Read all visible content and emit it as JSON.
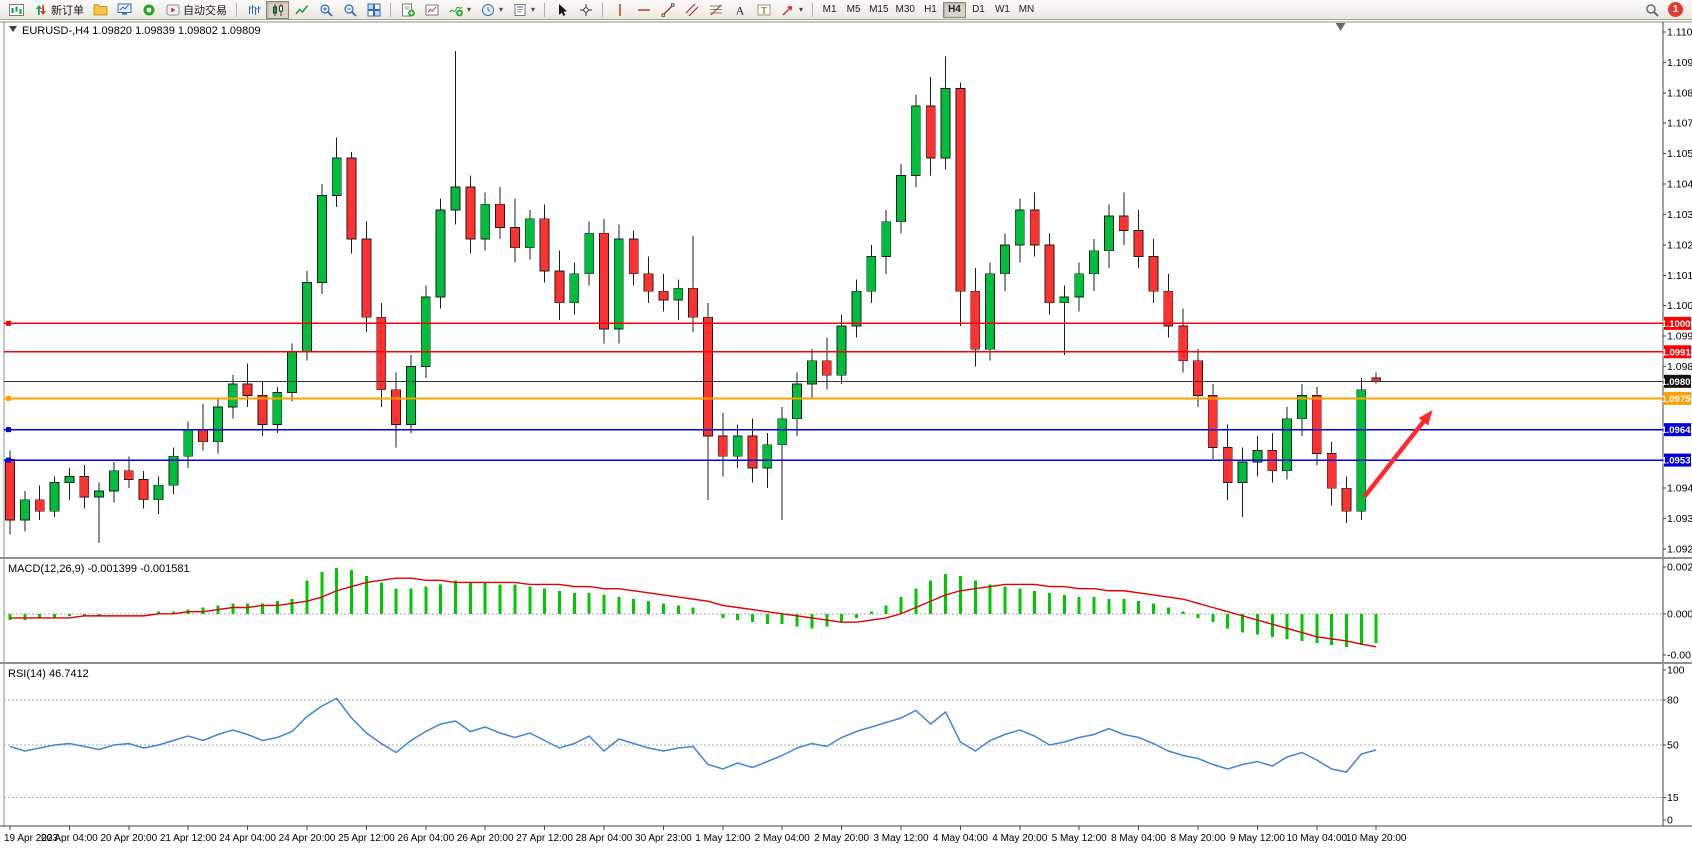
{
  "toolbar": {
    "new_order_label": "新订单",
    "autotrading_label": "自动交易",
    "timeframes": [
      "M1",
      "M5",
      "M15",
      "M30",
      "H1",
      "H4",
      "D1",
      "W1",
      "MN"
    ],
    "active_timeframe": "H4",
    "notification_count": "1",
    "icons": [
      "new-chart-icon",
      "new-order-icon",
      "profiles-icon",
      "market-watch-icon",
      "data-window-icon",
      "autotrading-icon",
      "bar-chart-icon",
      "candlestick-icon",
      "line-chart-icon",
      "zoom-in-icon",
      "zoom-out-icon",
      "tile-windows-icon",
      "order-window-icon",
      "chart-window-icon",
      "indicators-icon",
      "clock-icon",
      "template-icon",
      "cursor-icon",
      "crosshair-icon",
      "vertical-line-icon",
      "horizontal-line-icon",
      "trendline-icon",
      "channel-icon",
      "fibonacci-icon",
      "text-icon",
      "text-label-icon",
      "shapes-icon",
      "search-icon"
    ]
  },
  "chart_data": {
    "type": "candlestick",
    "title": "EURUSD-,H4",
    "ohlc": "1.09820 1.09839 1.09802 1.09809",
    "colors": {
      "up": "#00BE3C",
      "down": "#FF3232",
      "wick": "#1d1d1d",
      "macd_hist": "#00C800",
      "macd_signal": "#E00000",
      "rsi": "#3E86D8",
      "arrow": "#FF2A2A",
      "axis_text": "#000000",
      "level": "#A8A8A8"
    },
    "y_axis": {
      "max": 1.11015,
      "min": 1.0923,
      "step": 0.00105,
      "visible_ticks": [
        "1.11015",
        "1.10910",
        "1.10805",
        "1.10700",
        "1.10595",
        "1.10490",
        "1.10385",
        "1.10280",
        "1.10175",
        "1.10070",
        "1.09965",
        "1.09860",
        "1.09440",
        "1.09335",
        "1.09230"
      ]
    },
    "x_labels": [
      "19 Apr 2023",
      "20 Apr 04:00",
      "20 Apr 20:00",
      "21 Apr 12:00",
      "24 Apr 04:00",
      "24 Apr 20:00",
      "25 Apr 12:00",
      "26 Apr 04:00",
      "26 Apr 20:00",
      "27 Apr 12:00",
      "28 Apr 04:00",
      "30 Apr 23:00",
      "1 May 12:00",
      "2 May 04:00",
      "2 May 20:00",
      "3 May 12:00",
      "4 May 04:00",
      "4 May 20:00",
      "5 May 12:00",
      "8 May 04:00",
      "8 May 20:00",
      "9 May 12:00",
      "10 May 04:00",
      "10 May 20:00"
    ],
    "candles_per_label": 4,
    "candles": [
      [
        1.0954,
        1.0957,
        1.0928,
        1.0933
      ],
      [
        1.0933,
        1.0943,
        1.0929,
        1.094
      ],
      [
        1.094,
        1.0945,
        1.0933,
        1.0936
      ],
      [
        1.0936,
        1.0948,
        1.0934,
        1.0946
      ],
      [
        1.0946,
        1.0951,
        1.094,
        1.0948
      ],
      [
        1.0948,
        1.0952,
        1.0937,
        1.0941
      ],
      [
        1.0941,
        1.0946,
        1.0925,
        1.0943
      ],
      [
        1.0943,
        1.0953,
        1.0939,
        1.095
      ],
      [
        1.095,
        1.0955,
        1.0944,
        1.0947
      ],
      [
        1.0947,
        1.095,
        1.0937,
        1.094
      ],
      [
        1.094,
        1.0948,
        1.0935,
        1.0945
      ],
      [
        1.0945,
        1.0958,
        1.0942,
        1.0955
      ],
      [
        1.0955,
        1.0967,
        1.0951,
        1.0964
      ],
      [
        1.0964,
        1.0973,
        1.0957,
        1.096
      ],
      [
        1.096,
        1.0975,
        1.0956,
        1.0972
      ],
      [
        1.0972,
        1.0983,
        1.0968,
        1.098
      ],
      [
        1.098,
        1.0987,
        1.0972,
        1.0976
      ],
      [
        1.0976,
        1.0981,
        1.0962,
        1.0966
      ],
      [
        1.0966,
        1.0979,
        1.0963,
        1.0977
      ],
      [
        1.0977,
        1.0994,
        1.0974,
        1.0991
      ],
      [
        1.0991,
        1.1019,
        1.0988,
        1.1015
      ],
      [
        1.1015,
        1.1049,
        1.1011,
        1.1045
      ],
      [
        1.1045,
        1.1065,
        1.1041,
        1.1058
      ],
      [
        1.1058,
        1.106,
        1.1025,
        1.103
      ],
      [
        1.103,
        1.1036,
        1.0998,
        1.1003
      ],
      [
        1.1003,
        1.1008,
        1.0972,
        1.0978
      ],
      [
        1.0978,
        1.0984,
        1.0958,
        1.0966
      ],
      [
        1.0966,
        1.099,
        1.0963,
        1.0986
      ],
      [
        1.0986,
        1.1014,
        1.0982,
        1.101
      ],
      [
        1.101,
        1.1044,
        1.1006,
        1.104
      ],
      [
        1.104,
        1.1095,
        1.1035,
        1.1048
      ],
      [
        1.1048,
        1.1052,
        1.1025,
        1.103
      ],
      [
        1.103,
        1.1046,
        1.1026,
        1.1042
      ],
      [
        1.1042,
        1.1048,
        1.103,
        1.1034
      ],
      [
        1.1034,
        1.1044,
        1.1022,
        1.1027
      ],
      [
        1.1027,
        1.104,
        1.1023,
        1.1037
      ],
      [
        1.1037,
        1.1042,
        1.1015,
        1.1019
      ],
      [
        1.1019,
        1.1026,
        1.1002,
        1.1008
      ],
      [
        1.1008,
        1.1022,
        1.1004,
        1.1018
      ],
      [
        1.1018,
        1.1036,
        1.1014,
        1.1032
      ],
      [
        1.1032,
        1.1037,
        1.0994,
        1.0999
      ],
      [
        1.0999,
        1.1035,
        1.0994,
        1.103
      ],
      [
        1.103,
        1.1033,
        1.1014,
        1.1018
      ],
      [
        1.1018,
        1.1024,
        1.1008,
        1.1012
      ],
      [
        1.1012,
        1.1018,
        1.1005,
        1.1009
      ],
      [
        1.1009,
        1.1016,
        1.1002,
        1.1013
      ],
      [
        1.1013,
        1.1031,
        1.0998,
        1.1003
      ],
      [
        1.1003,
        1.1008,
        1.094,
        1.0962
      ],
      [
        1.0962,
        1.097,
        1.0948,
        1.0955
      ],
      [
        1.0955,
        1.0966,
        1.0951,
        1.0962
      ],
      [
        1.0962,
        1.0968,
        1.0946,
        1.0951
      ],
      [
        1.0951,
        1.0963,
        1.0944,
        1.0959
      ],
      [
        1.0959,
        1.0972,
        1.0933,
        1.0968
      ],
      [
        1.0968,
        1.0984,
        1.0962,
        1.098
      ],
      [
        1.098,
        1.0992,
        1.0975,
        1.0988
      ],
      [
        1.0988,
        1.0996,
        1.0978,
        1.0983
      ],
      [
        1.0983,
        1.1004,
        1.098,
        1.1
      ],
      [
        1.1,
        1.1016,
        1.0996,
        1.1012
      ],
      [
        1.1012,
        1.1028,
        1.1008,
        1.1024
      ],
      [
        1.1024,
        1.104,
        1.1018,
        1.1036
      ],
      [
        1.1036,
        1.1056,
        1.1032,
        1.1052
      ],
      [
        1.1052,
        1.108,
        1.1048,
        1.1076
      ],
      [
        1.1076,
        1.1086,
        1.1052,
        1.1058
      ],
      [
        1.1058,
        1.1093,
        1.1054,
        1.1082
      ],
      [
        1.1082,
        1.1084,
        1.1,
        1.1012
      ],
      [
        1.1012,
        1.102,
        1.0986,
        1.0992
      ],
      [
        1.0992,
        1.1022,
        1.0988,
        1.1018
      ],
      [
        1.1018,
        1.1032,
        1.1012,
        1.1028
      ],
      [
        1.1028,
        1.1044,
        1.1022,
        1.104
      ],
      [
        1.104,
        1.1046,
        1.1024,
        1.1028
      ],
      [
        1.1028,
        1.1032,
        1.1004,
        1.1008
      ],
      [
        1.1008,
        1.1014,
        1.099,
        1.101
      ],
      [
        1.101,
        1.1022,
        1.1005,
        1.1018
      ],
      [
        1.1018,
        1.103,
        1.1012,
        1.1026
      ],
      [
        1.1026,
        1.1042,
        1.102,
        1.1038
      ],
      [
        1.1038,
        1.1046,
        1.1028,
        1.1033
      ],
      [
        1.1033,
        1.104,
        1.102,
        1.1024
      ],
      [
        1.1024,
        1.103,
        1.1008,
        1.1012
      ],
      [
        1.1012,
        1.1018,
        1.0996,
        1.1
      ],
      [
        1.1,
        1.1006,
        1.0984,
        1.0988
      ],
      [
        1.0988,
        1.0992,
        1.0972,
        1.0976
      ],
      [
        1.0976,
        1.098,
        1.0954,
        1.0958
      ],
      [
        1.0958,
        1.0966,
        1.094,
        1.0946
      ],
      [
        1.0946,
        1.0958,
        1.0934,
        1.0953
      ],
      [
        1.0953,
        1.0962,
        1.0948,
        1.0957
      ],
      [
        1.0957,
        1.0963,
        1.0946,
        1.095
      ],
      [
        1.095,
        1.0972,
        1.0947,
        1.0968
      ],
      [
        1.0968,
        1.098,
        1.0962,
        1.0976
      ],
      [
        1.0976,
        1.0979,
        1.0952,
        1.0956
      ],
      [
        1.0956,
        1.096,
        1.0938,
        1.0944
      ],
      [
        1.0944,
        1.0948,
        1.0932,
        1.0936
      ],
      [
        1.0936,
        1.0982,
        1.0933,
        1.0978
      ],
      [
        1.0982,
        1.09839,
        1.09802,
        1.09809
      ]
    ],
    "hlines": [
      {
        "price": 1.10009,
        "label": "1.10009",
        "color": "#FF0000",
        "width": 1.3,
        "handle": true
      },
      {
        "price": 1.09911,
        "label": "1.09911",
        "color": "#FF0000",
        "width": 1.3,
        "handle": false
      },
      {
        "price": 1.0975,
        "label": "1.09750",
        "color": "#FFA000",
        "width": 2,
        "handle": true
      },
      {
        "price": 1.09642,
        "label": "1.09642",
        "color": "#0000E0",
        "width": 1.6,
        "handle": true
      },
      {
        "price": 1.09537,
        "label": "1.09537",
        "color": "#0000E0",
        "width": 1.6,
        "handle": true
      }
    ],
    "current_price": {
      "price": 1.09809,
      "label": "1.09809",
      "color": "#333333"
    },
    "arrow": {
      "from_bar": 91.2,
      "from_price": 1.0941,
      "to_bar": 95.8,
      "to_price": 1.0971
    },
    "shift_marker_bar": 89.6,
    "macd": {
      "label": "MACD(12,26,9)",
      "values": "-0.001399 -0.001581",
      "scale_max": "0.002236",
      "scale_zero": "0.0000",
      "scale_min": "-0.001971",
      "histogram_e4": [
        -3,
        -3,
        -2,
        -2,
        -1,
        -1,
        -1,
        0,
        0,
        0,
        1,
        1,
        2,
        3,
        4,
        5,
        5,
        5,
        6,
        7,
        16,
        20,
        22,
        21,
        18,
        15,
        12,
        12,
        13,
        14,
        16,
        15,
        15,
        14,
        14,
        13,
        12,
        11,
        10,
        10,
        9,
        8,
        7,
        6,
        5,
        4,
        3,
        0,
        -2,
        -3,
        -4,
        -5,
        -5,
        -6,
        -7,
        -6,
        -4,
        -2,
        1,
        4,
        8,
        12,
        16,
        19,
        18,
        16,
        14,
        13,
        12,
        11,
        10,
        9,
        8,
        8,
        7,
        7,
        6,
        5,
        3,
        1,
        -2,
        -4,
        -7,
        -9,
        -10,
        -11,
        -12,
        -13,
        -14,
        -15,
        -16,
        -15,
        -13.99
      ],
      "signal_e4": [
        -2,
        -2,
        -2,
        -2,
        -2,
        -1,
        -1,
        -1,
        -1,
        -1,
        0,
        0,
        1,
        1,
        2,
        3,
        3,
        4,
        4,
        5,
        6,
        8,
        11,
        13,
        15,
        16,
        17,
        17,
        16,
        16,
        15,
        15,
        15,
        15,
        15,
        14,
        14,
        14,
        13,
        13,
        12,
        12,
        11,
        10,
        9,
        8,
        7,
        6,
        4,
        3,
        2,
        1,
        0,
        -1,
        -2,
        -3,
        -4,
        -4,
        -3,
        -2,
        0,
        3,
        6,
        9,
        11,
        12,
        13,
        14,
        14,
        14,
        13,
        13,
        12,
        12,
        11,
        11,
        10,
        9,
        8,
        7,
        5,
        3,
        1,
        -1,
        -3,
        -5,
        -7,
        -9,
        -11,
        -12,
        -13,
        -14.5,
        -15.81
      ]
    },
    "rsi": {
      "label": "RSI(14)",
      "value": "46.7412",
      "level_labels": [
        "100",
        "80",
        "50",
        "15",
        "0"
      ],
      "level_values": [
        100,
        80,
        50,
        15,
        0
      ],
      "dashed_levels": [
        80,
        50,
        15
      ],
      "line": [
        49,
        46,
        48,
        50,
        51,
        49,
        47,
        50,
        51,
        48,
        50,
        53,
        56,
        53,
        57,
        60,
        57,
        53,
        55,
        59,
        69,
        76,
        81,
        68,
        58,
        51,
        45,
        53,
        59,
        64,
        66,
        59,
        62,
        58,
        55,
        58,
        53,
        48,
        51,
        56,
        46,
        54,
        51,
        48,
        46,
        48,
        49,
        37,
        34,
        38,
        35,
        39,
        43,
        48,
        51,
        49,
        55,
        59,
        62,
        65,
        68,
        73,
        64,
        72,
        52,
        46,
        53,
        57,
        60,
        56,
        50,
        52,
        55,
        57,
        61,
        57,
        55,
        51,
        46,
        43,
        41,
        37,
        34,
        37,
        39,
        36,
        42,
        45,
        40,
        34,
        32,
        44,
        46.7412
      ]
    }
  }
}
